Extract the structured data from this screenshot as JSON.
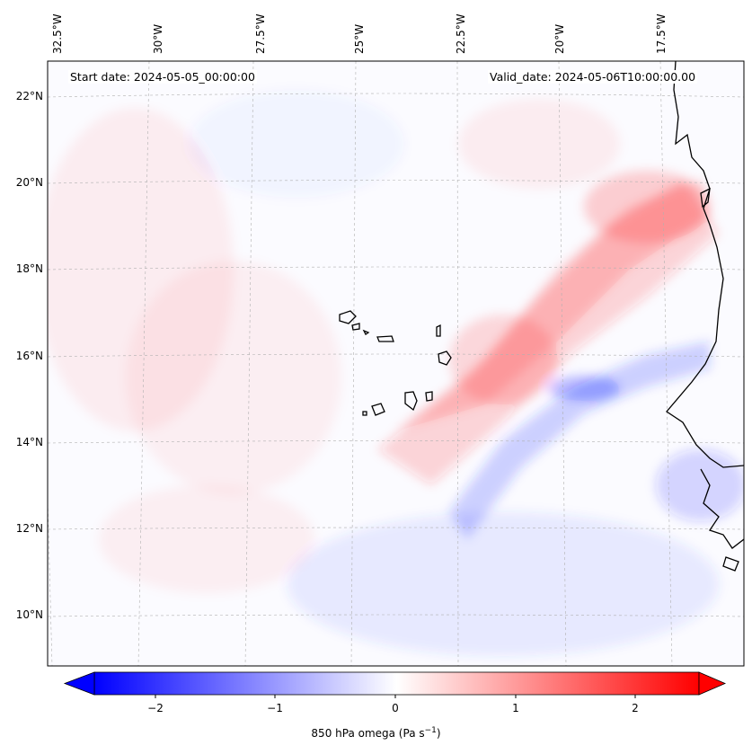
{
  "map": {
    "start_date": "Start date: 2024-05-05_00:00:00",
    "valid_date": "Valid_date: 2024-05-06T10:00:00.00",
    "lon_labels": [
      "32.5°W",
      "30°W",
      "27.5°W",
      "25°W",
      "22.5°W",
      "20°W",
      "17.5°W"
    ],
    "lat_labels": [
      "22°N",
      "20°N",
      "18°N",
      "16°N",
      "14°N",
      "12°N",
      "10°N"
    ],
    "field_colors": {
      "negative": "#0000ff",
      "neutral": "#ffffff",
      "positive": "#ff0000"
    }
  },
  "colorbar": {
    "ticks": [
      "−2",
      "−1",
      "0",
      "1",
      "2"
    ],
    "label_prefix": "850 hPa omega (Pa s",
    "label_exp": "−1",
    "label_suffix": ")",
    "range": [
      -2.75,
      2.75
    ]
  }
}
